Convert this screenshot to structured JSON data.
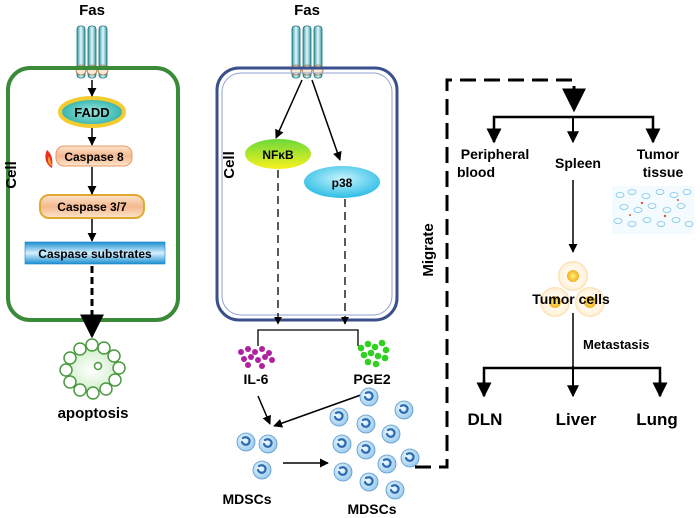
{
  "labels": {
    "fas_left": "Fas",
    "fas_middle": "Fas",
    "cell_left": "Cell",
    "cell_middle": "Cell",
    "fadd": "FADD",
    "caspase8": "Caspase 8",
    "caspase37": "Caspase 3/7",
    "caspase_substrates": "Caspase substrates",
    "apoptosis": "apoptosis",
    "nfkb": "NFκB",
    "p38": "p38",
    "il6": "IL-6",
    "pge2": "PGE2",
    "mdscs_small": "MDSCs",
    "mdscs_large": "MDSCs",
    "migrate": "Migrate",
    "peripheral_line1": "Peripheral",
    "peripheral_line2": "blood",
    "spleen": "Spleen",
    "tumor_tissue_line1": "Tumor",
    "tumor_tissue_line2": "tissue",
    "tumor_cells": "Tumor cells",
    "metastasis": "Metastasis",
    "dln": "DLN",
    "liver": "Liver",
    "lung": "Lung"
  },
  "colors": {
    "left_cell_border": "#3a8a3a",
    "middle_cell_border": "#3a4f8c",
    "fadd_fill": "#33b7b0",
    "fadd_ring": "#f2cc30",
    "caspase_fill": "#f6c8a0",
    "caspase37_border": "#e0aa30",
    "substrates_bar": "#35aee6",
    "apoptosis_ring": "#4a9a40",
    "nfkb_top": "#7de23a",
    "nfkb_bottom": "#f5f020",
    "p38_fill": "#22c8ea",
    "il6_dots": "#b020a0",
    "pge2_dots": "#30d020",
    "mdsc_fill": "#a8d4f2",
    "mdsc_nucleus": "#2a6ab0",
    "tumor_cell_glow": "#f8b020"
  }
}
